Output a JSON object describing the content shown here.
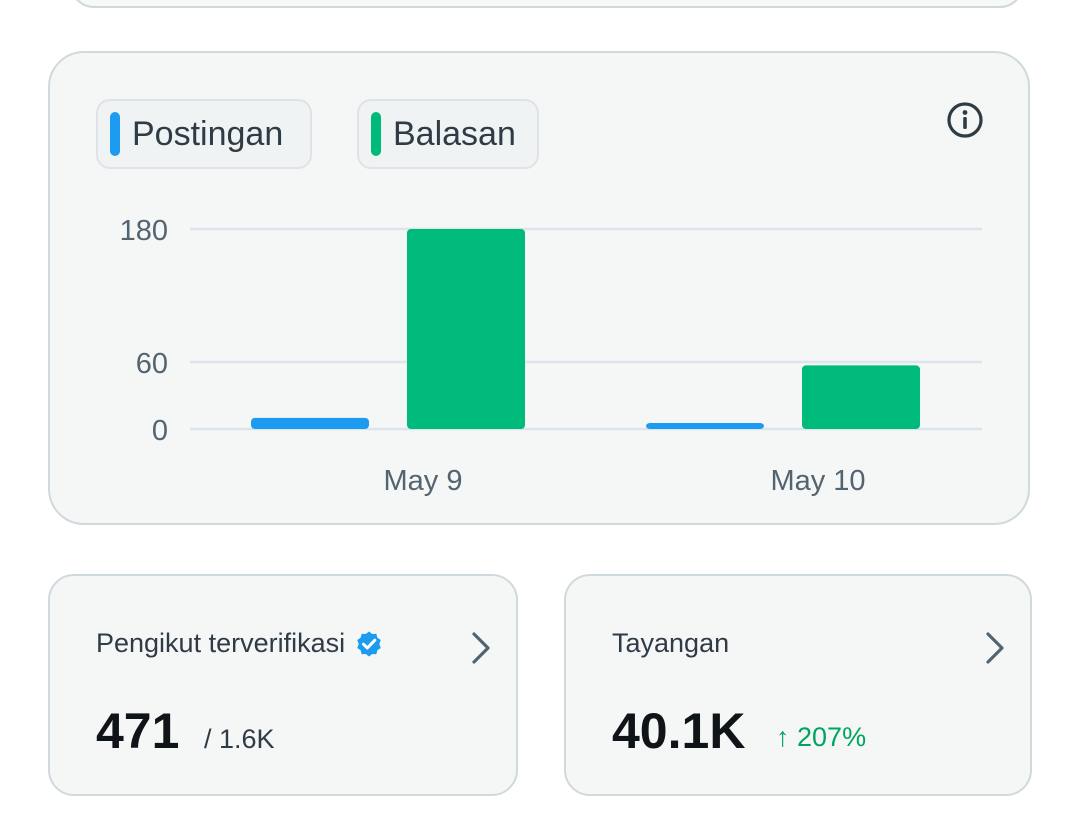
{
  "legend": {
    "posts_label": "Postingan",
    "replies_label": "Balasan"
  },
  "colors": {
    "posts": "#1d9bf0",
    "replies": "#00ba7c",
    "grid": "#dce5ec",
    "text_muted": "#536471",
    "delta_up": "#00a461"
  },
  "icons": {
    "info": "info-circle-icon",
    "verified": "verified-badge-icon",
    "chevron": "chevron-right-icon",
    "trend": "arrow-up-icon"
  },
  "chart_data": {
    "type": "bar",
    "categories": [
      "May 9",
      "May 10"
    ],
    "series": [
      {
        "name": "Postingan",
        "values": [
          10,
          5
        ]
      },
      {
        "name": "Balasan",
        "values": [
          180,
          57
        ]
      }
    ],
    "y_ticks": [
      0,
      60,
      180
    ],
    "ylim": [
      0,
      180
    ],
    "scale": "piecewise",
    "grid": true,
    "legend_position": "top-left"
  },
  "stats": {
    "verified_followers": {
      "label": "Pengikut terverifikasi",
      "value": "471",
      "total": "/ 1.6K"
    },
    "views": {
      "label": "Tayangan",
      "value": "40.1K",
      "delta": "207%"
    }
  }
}
